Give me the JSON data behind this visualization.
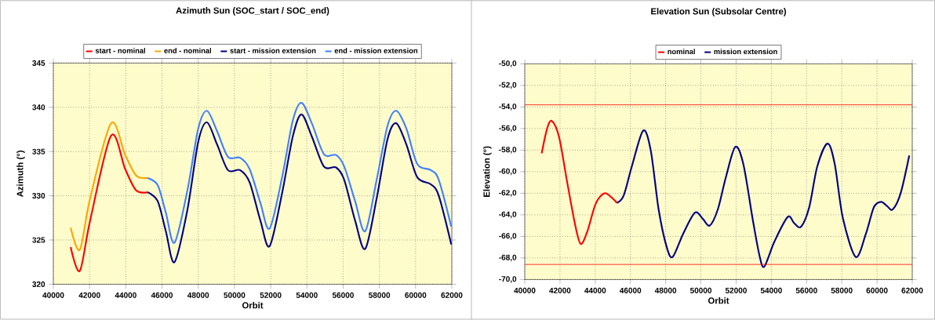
{
  "chart_data": [
    {
      "type": "line",
      "title": "Azimuth Sun (SOC_start / SOC_end)",
      "xlabel": "Orbit",
      "ylabel": "Azimuth (°)",
      "xlim": [
        40000,
        62000
      ],
      "ylim": [
        320,
        345
      ],
      "xticks": [
        40000,
        42000,
        44000,
        46000,
        48000,
        50000,
        52000,
        54000,
        56000,
        58000,
        60000,
        62000
      ],
      "yticks": [
        320,
        325,
        330,
        335,
        340,
        345
      ],
      "grid": true,
      "legend": "top",
      "series": [
        {
          "name": "start - nominal",
          "color": "#ff0000",
          "x": [
            40955,
            41460,
            42030,
            43190,
            43970,
            44570,
            45190
          ],
          "values": [
            324.2,
            321.5,
            327.2,
            336.8,
            333.0,
            330.6,
            330.4
          ]
        },
        {
          "name": "end - nominal",
          "color": "#ffa500",
          "x": [
            40955,
            41460,
            42030,
            43190,
            43970,
            44570,
            45190
          ],
          "values": [
            326.4,
            323.9,
            329.7,
            338.2,
            334.6,
            332.3,
            332.0
          ]
        },
        {
          "name": "start - mission extension",
          "color": "#000080",
          "x": [
            45190,
            45760,
            46210,
            46690,
            47400,
            48000,
            48480,
            49040,
            49640,
            50310,
            50840,
            51430,
            51940,
            52630,
            53220,
            53700,
            54270,
            54940,
            55610,
            56060,
            56660,
            57220,
            57850,
            58450,
            58930,
            59490,
            60090,
            60840,
            61280,
            61970
          ],
          "values": [
            330.4,
            329.4,
            326.0,
            322.5,
            328.4,
            336.1,
            338.3,
            335.8,
            332.9,
            332.9,
            331.5,
            327.2,
            324.3,
            330.3,
            336.7,
            339.2,
            336.7,
            333.3,
            333.2,
            331.8,
            327.2,
            324.0,
            329.7,
            336.4,
            338.2,
            335.8,
            332.1,
            331.3,
            330.0,
            324.5
          ]
        },
        {
          "name": "end - mission extension",
          "color": "#4080ff",
          "x": [
            45190,
            45760,
            46210,
            46690,
            47400,
            48000,
            48480,
            49040,
            49640,
            50310,
            50840,
            51430,
            51940,
            52630,
            53220,
            53700,
            54270,
            54940,
            55610,
            56060,
            56660,
            57220,
            57850,
            58450,
            58930,
            59490,
            60090,
            60840,
            61280,
            61970
          ],
          "values": [
            332.0,
            331.2,
            328.1,
            324.7,
            330.6,
            337.6,
            339.6,
            337.3,
            334.4,
            334.3,
            333.0,
            329.2,
            326.3,
            332.1,
            338.5,
            340.5,
            338.2,
            334.7,
            334.6,
            333.3,
            329.4,
            326.0,
            331.8,
            337.9,
            339.6,
            337.6,
            333.6,
            332.9,
            331.8,
            326.5
          ]
        }
      ]
    },
    {
      "type": "line",
      "title": "Elevation Sun (Subsolar Centre)",
      "xlabel": "Orbit",
      "ylabel": "Elevation (°)",
      "xlim": [
        40000,
        62000
      ],
      "ylim": [
        -70,
        -50
      ],
      "xticks": [
        40000,
        42000,
        44000,
        46000,
        48000,
        50000,
        52000,
        54000,
        56000,
        58000,
        60000,
        62000
      ],
      "yticks": [
        {
          "value": -70,
          "label": "-70,0"
        },
        {
          "value": -68,
          "label": "-68,0"
        },
        {
          "value": -66,
          "label": "-66,0"
        },
        {
          "value": -64,
          "label": "-64,0"
        },
        {
          "value": -62,
          "label": "-62,0"
        },
        {
          "value": -60,
          "label": "-60,0"
        },
        {
          "value": -58,
          "label": "-58,0"
        },
        {
          "value": -56,
          "label": "-56,0"
        },
        {
          "value": -54,
          "label": "-54,0"
        },
        {
          "value": -52,
          "label": "-52,0"
        },
        {
          "value": -50,
          "label": "-50,0"
        }
      ],
      "grid": true,
      "legend": "top",
      "ref_lines": [
        {
          "axis": "y",
          "value": -53.8,
          "color": "#ff0000"
        },
        {
          "axis": "y",
          "value": -68.6,
          "color": "#ff0000"
        }
      ],
      "series": [
        {
          "name": "nominal",
          "color": "#ff0000",
          "x": [
            40960,
            41270,
            41540,
            41950,
            42410,
            42870,
            43180,
            43560,
            44020,
            44520,
            44930,
            45240
          ],
          "values": [
            -58.3,
            -56.0,
            -55.3,
            -56.8,
            -61.0,
            -65.0,
            -66.7,
            -65.5,
            -63.0,
            -62.0,
            -62.4,
            -62.9
          ]
        },
        {
          "name": "mission extension",
          "color": "#000080",
          "x": [
            45240,
            45620,
            46080,
            46720,
            47150,
            47600,
            48060,
            48400,
            48980,
            49660,
            50120,
            50500,
            50960,
            51420,
            51950,
            52410,
            52950,
            53330,
            53600,
            54170,
            54930,
            55310,
            55690,
            56150,
            56610,
            57190,
            57600,
            58060,
            58790,
            59360,
            59820,
            60230,
            60580,
            60890,
            61340,
            61830
          ],
          "values": [
            -62.9,
            -62.2,
            -59.5,
            -56.2,
            -58.0,
            -63.5,
            -67.0,
            -67.9,
            -65.8,
            -63.8,
            -64.4,
            -65.0,
            -63.5,
            -60.5,
            -57.7,
            -59.3,
            -64.5,
            -67.8,
            -68.8,
            -66.5,
            -64.2,
            -64.8,
            -65.1,
            -63.3,
            -59.5,
            -57.4,
            -59.3,
            -64.3,
            -67.9,
            -65.8,
            -63.3,
            -62.8,
            -63.2,
            -63.5,
            -62.0,
            -58.5
          ]
        }
      ]
    }
  ]
}
